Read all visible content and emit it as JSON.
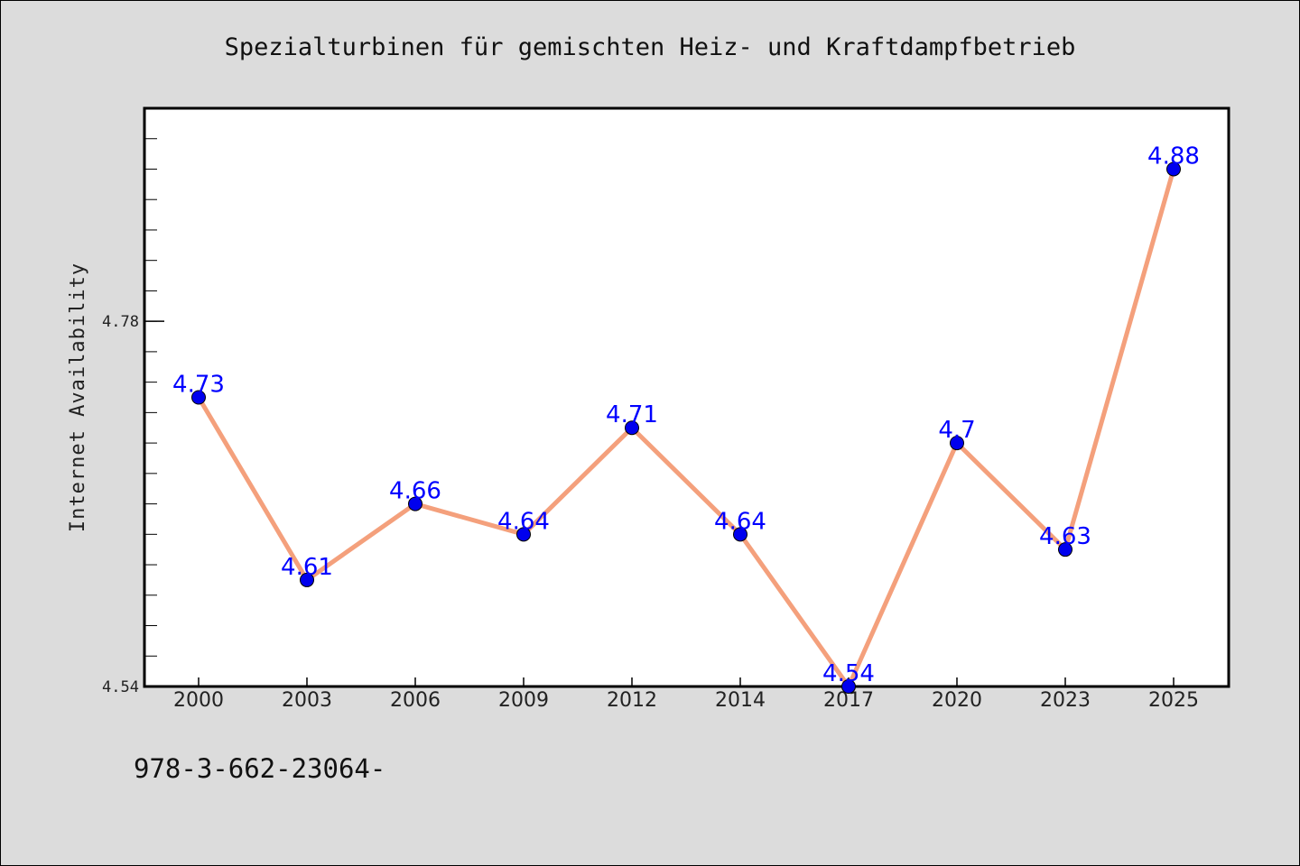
{
  "chart_data": {
    "type": "line",
    "title": "Spezialturbinen für gemischten Heiz- und Kraftdampfbetrieb",
    "xlabel": "",
    "ylabel": "Internet Availability",
    "categories": [
      "2000",
      "2003",
      "2006",
      "2009",
      "2012",
      "2014",
      "2017",
      "2020",
      "2023",
      "2025"
    ],
    "series": [
      {
        "values": [
          4.73,
          4.61,
          4.66,
          4.64,
          4.71,
          4.64,
          4.54,
          4.7,
          4.63,
          4.88
        ],
        "data_labels": [
          "4.73",
          "4.61",
          "4.66",
          "4.64",
          "4.71",
          "4.64",
          "4.54",
          "4.7",
          "4.63",
          "4.88"
        ],
        "line_color": "#f4a07c",
        "marker_color": "#0000ee"
      }
    ],
    "yticks": [
      "4.54",
      "4.78"
    ],
    "ylim": [
      4.54,
      4.92
    ],
    "grid": false,
    "legend": "none",
    "data_label_color": "#0000ff"
  },
  "footer": {
    "text": "978-3-662-23064-"
  },
  "colors": {
    "background": "#dcdcdc",
    "plot_area": "#ffffff"
  }
}
